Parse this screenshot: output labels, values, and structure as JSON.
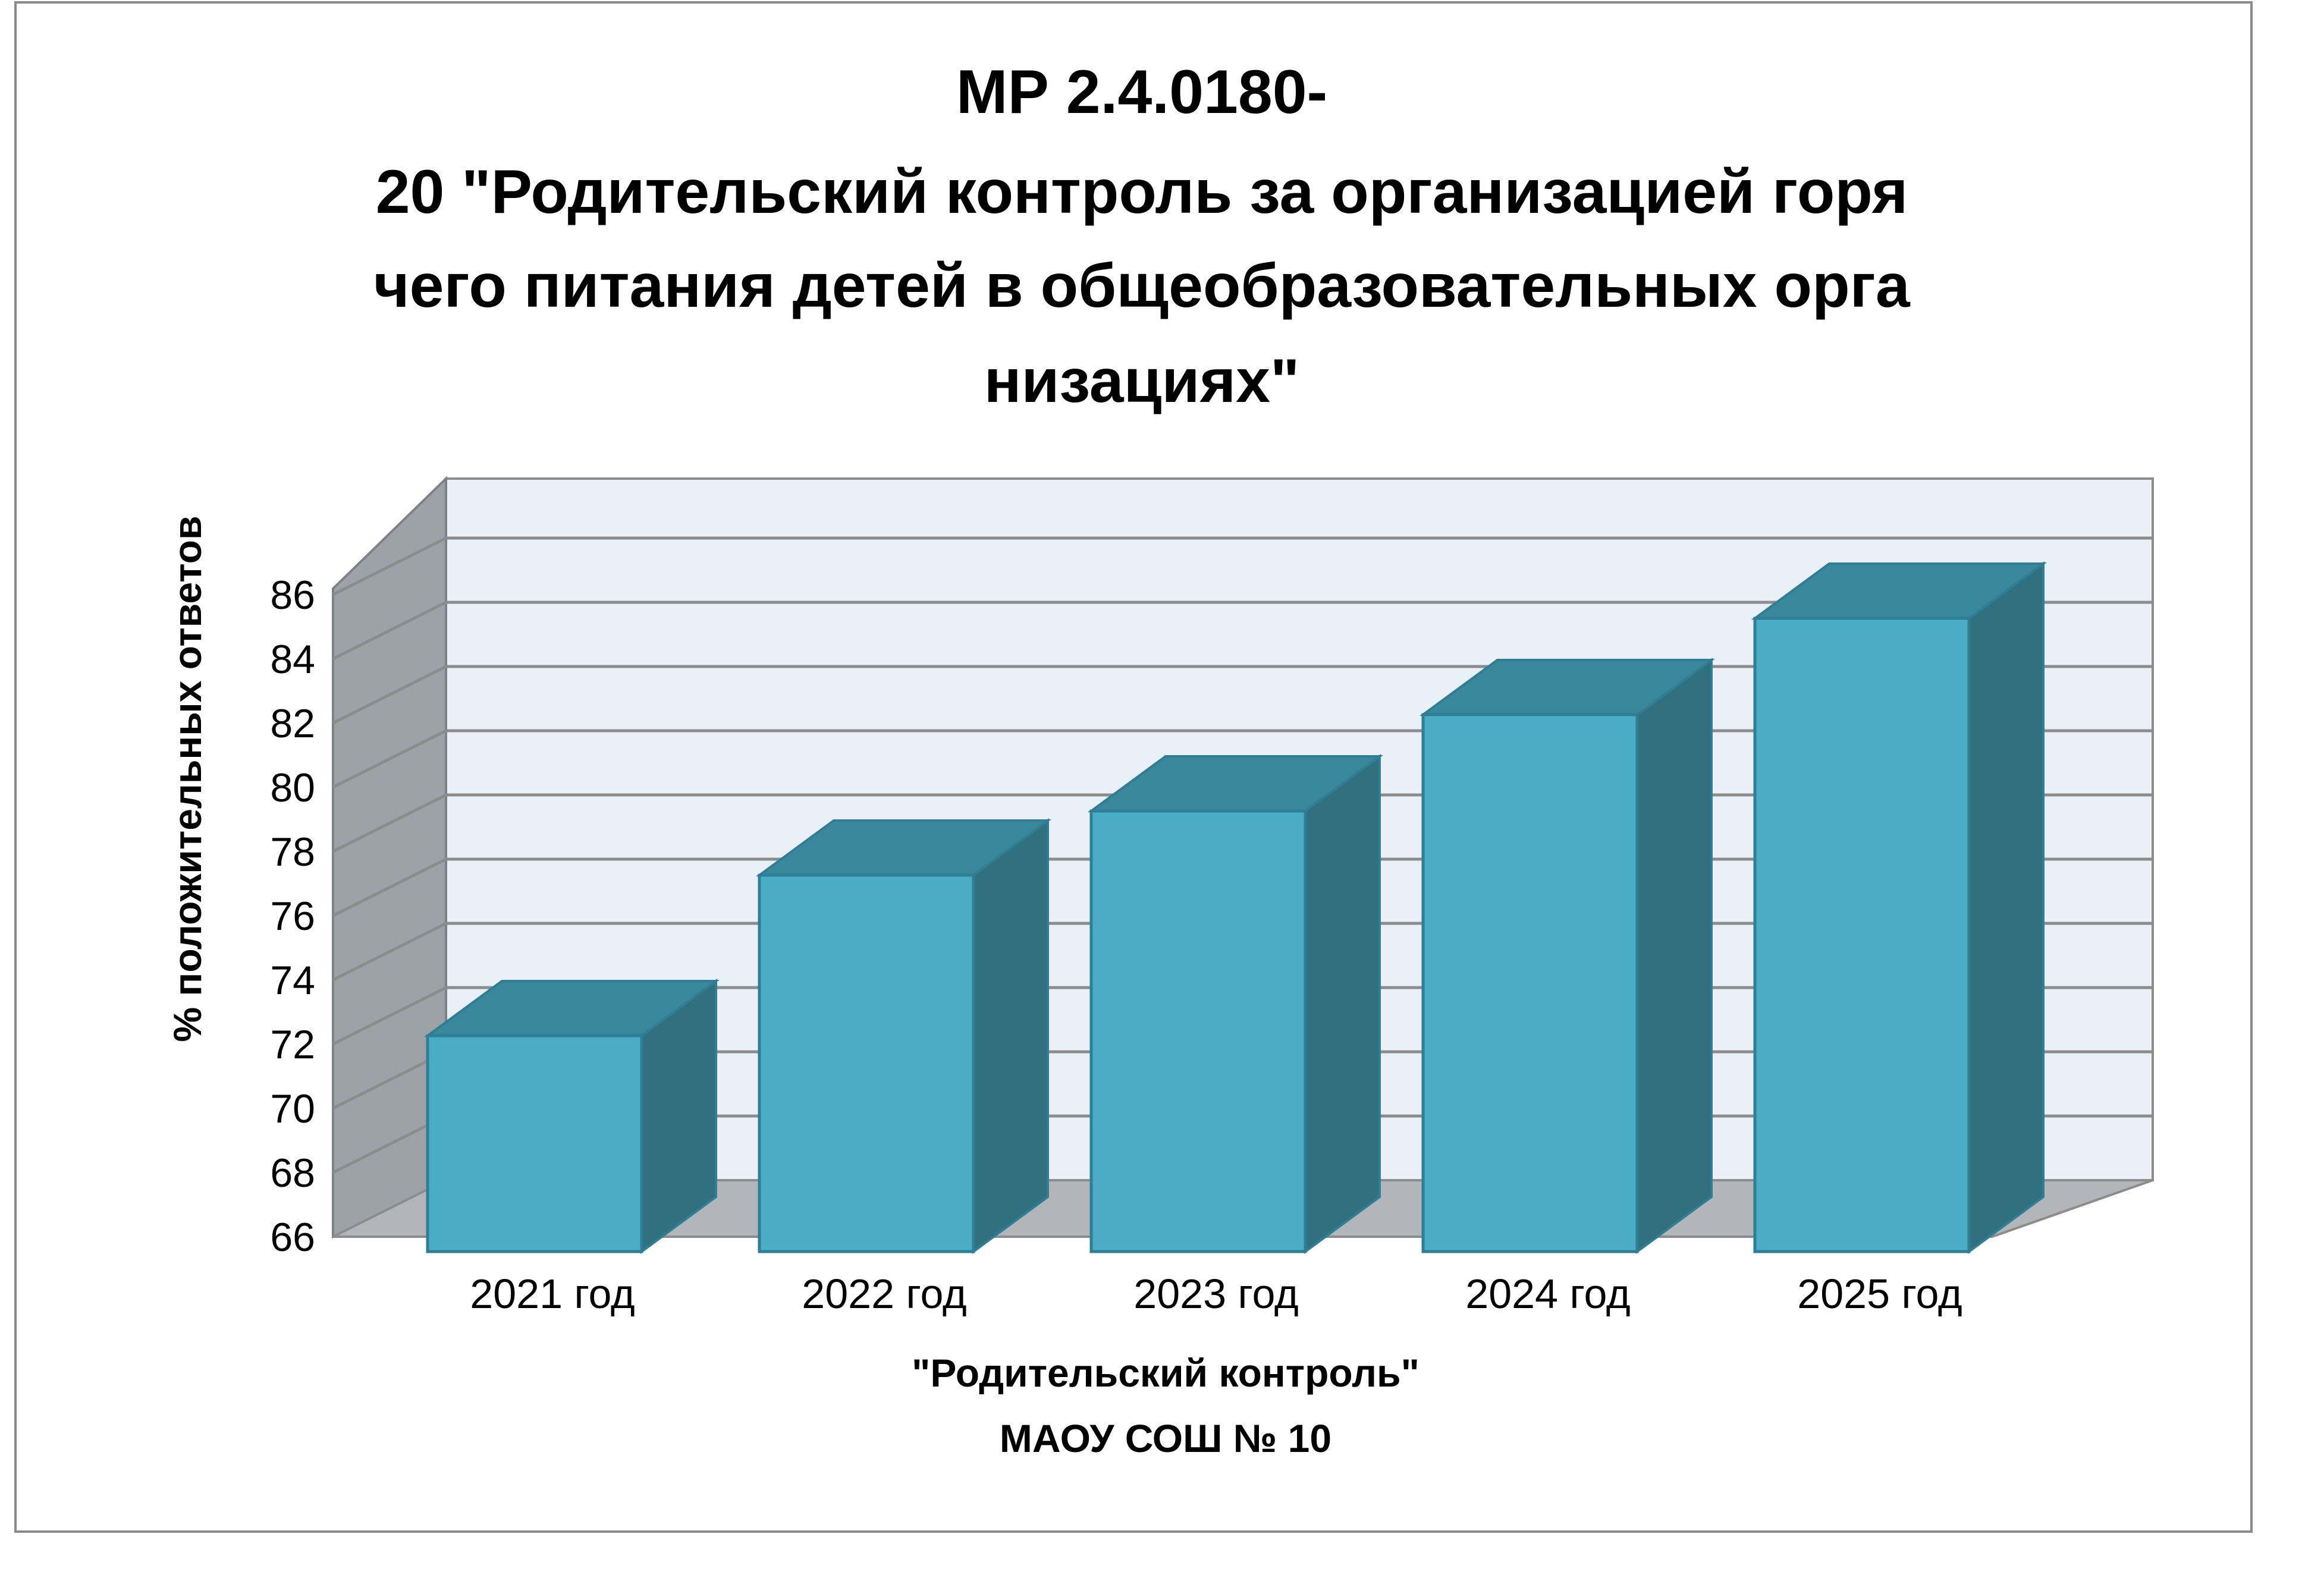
{
  "chart_data": {
    "type": "bar",
    "title_lines": [
      "МР 2.4.0180-",
      "20 \"Родительский контроль за организацией горя",
      "чего питания детей в общеобразовательных орга",
      "низациях\""
    ],
    "xlabel_lines": [
      "\"Родительский контроль\"",
      "МАОУ СОШ № 10"
    ],
    "ylabel": "% положительных ответов",
    "categories": [
      "2021 год",
      "2022 год",
      "2023 год",
      "2024 год",
      "2025 год"
    ],
    "values": [
      73,
      78,
      80,
      83,
      86
    ],
    "ylim": [
      66,
      86
    ],
    "yticks": [
      66,
      68,
      70,
      72,
      74,
      76,
      78,
      80,
      82,
      84,
      86
    ],
    "three_d": true,
    "grid": true,
    "legend": "none",
    "colors": {
      "bar_front": "#4BACC6",
      "bar_top": "#3A879C",
      "bar_side": "#31707F",
      "bar_edge": "#2F7E96",
      "back_wall": "#E9F0F7",
      "side_wall": "#9CA2A8",
      "floor": "#B2B6BA",
      "gridline": "#8C8C8C"
    }
  }
}
